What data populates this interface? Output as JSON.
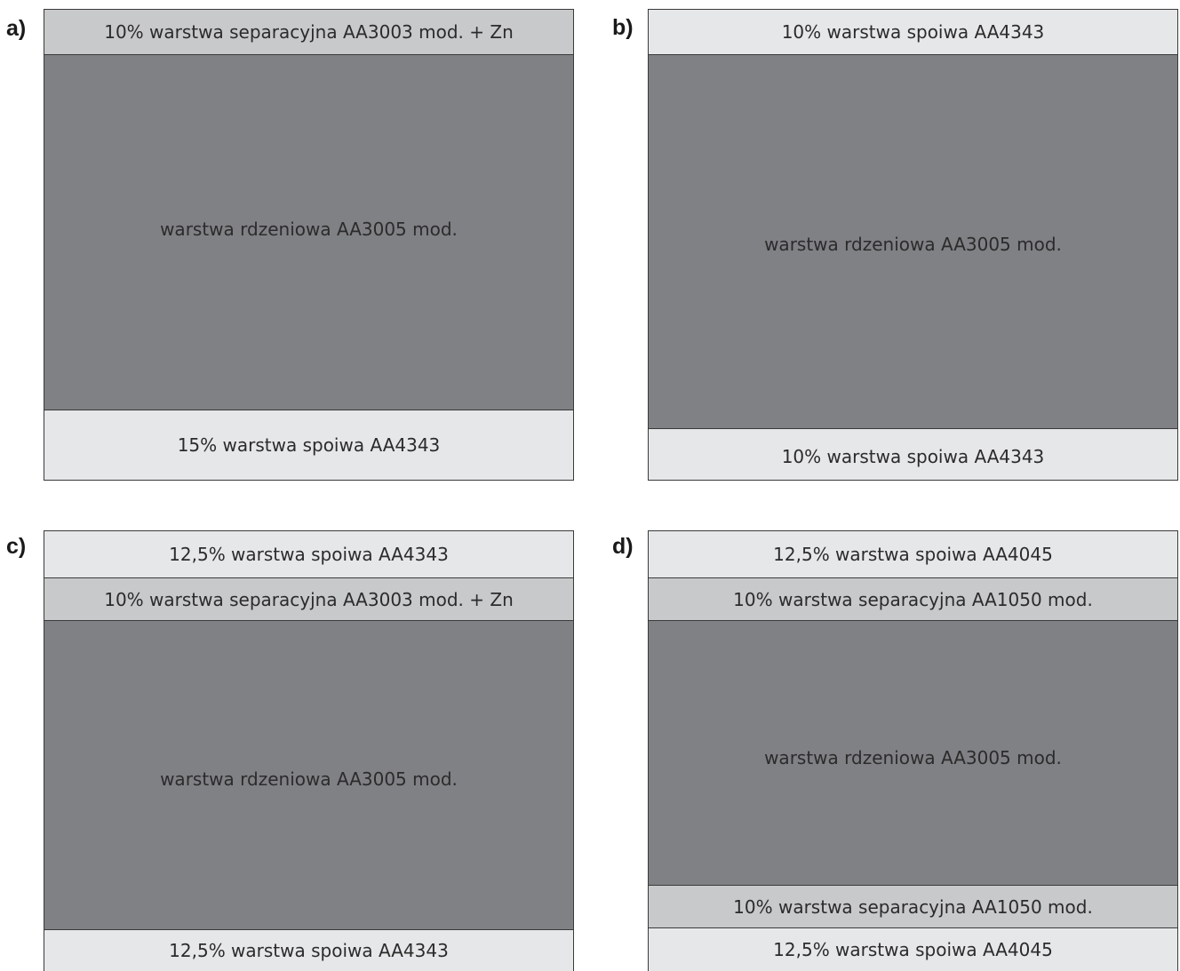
{
  "panels": {
    "a": {
      "letter": "a)",
      "layers": [
        "10% warstwa separacyjna AA3003 mod. + Zn",
        "warstwa rdzeniowa AA3005 mod.",
        "15% warstwa spoiwa AA4343"
      ]
    },
    "b": {
      "letter": "b)",
      "layers": [
        "10% warstwa spoiwa AA4343",
        "warstwa rdzeniowa AA3005 mod.",
        "10% warstwa spoiwa AA4343"
      ]
    },
    "c": {
      "letter": "c)",
      "layers": [
        "12,5% warstwa spoiwa AA4343",
        "10% warstwa separacyjna AA3003 mod. + Zn",
        "warstwa rdzeniowa AA3005 mod.",
        "12,5% warstwa spoiwa AA4343"
      ]
    },
    "d": {
      "letter": "d)",
      "layers": [
        "12,5% warstwa spoiwa AA4045",
        "10% warstwa separacyjna AA1050 mod.",
        "warstwa rdzeniowa AA3005 mod.",
        "10% warstwa separacyjna AA1050 mod.",
        "12,5% warstwa spoiwa AA4045"
      ]
    }
  },
  "colors": {
    "braze_layer": "#e6e7e9",
    "separation_layer": "#c8c9cb",
    "core_layer": "#808185",
    "outline": "#3a3a3a"
  }
}
